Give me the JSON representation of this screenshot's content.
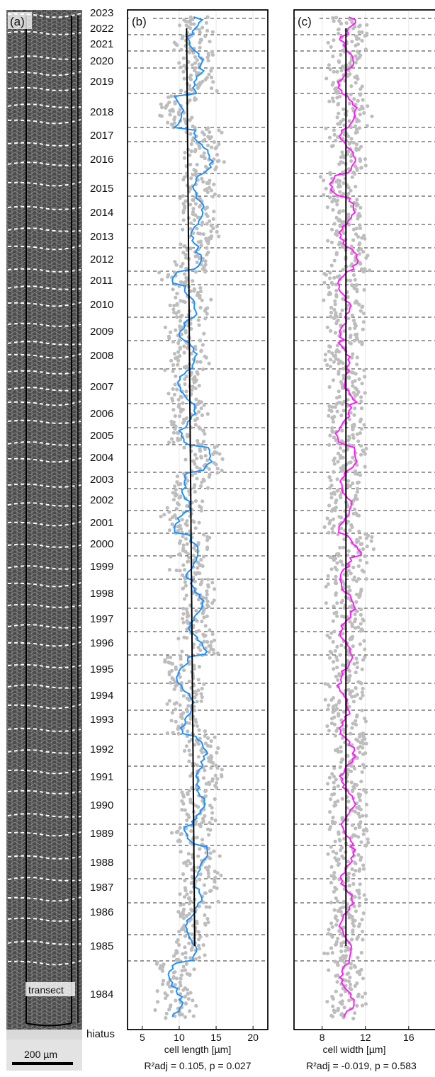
{
  "panels": {
    "a": {
      "label": "(a)",
      "transect_label": "transect",
      "scale_label": "200 µm"
    },
    "b": {
      "label": "(b)"
    },
    "c": {
      "label": "(c)"
    }
  },
  "years": [
    "2023",
    "2022",
    "2021",
    "2020",
    "2019",
    "2018",
    "2017",
    "2016",
    "2015",
    "2014",
    "2013",
    "2012",
    "2011",
    "2010",
    "2009",
    "2008",
    "2007",
    "2006",
    "2005",
    "2004",
    "2003",
    "2002",
    "2001",
    "2000",
    "1999",
    "1998",
    "1997",
    "1996",
    "1995",
    "1994",
    "1993",
    "1992",
    "1991",
    "1990",
    "1989",
    "1988",
    "1987",
    "1986",
    "1985",
    "1984"
  ],
  "hiatus_label": "hiatus",
  "colors": {
    "length_series": "#1e90ff",
    "width_series": "#ff1aff",
    "points": "#bdbdbd",
    "trend": "#000000",
    "micrograph": "#4a4a4a"
  },
  "chart_data": [
    {
      "type": "scatter",
      "title": "",
      "xlabel": "cell length [µm]",
      "ylabel": "",
      "xlim": [
        3,
        22
      ],
      "xticks": [
        5,
        10,
        15,
        20
      ],
      "grid": "vertical",
      "stat_label": "R²adj = 0.105, p = 0.027",
      "stats": {
        "r2_adj": 0.105,
        "p": 0.027
      },
      "trend_line": {
        "from_year": "1985",
        "x_start": 12.1,
        "to_year": "2023",
        "x_end": 11.0
      },
      "series": [
        {
          "color": "#1e90ff",
          "mean_by_year": [
            11.5,
            12.4,
            12.0,
            12.2,
            12.8,
            9.8,
            13.0,
            13.5,
            12.8,
            12.5,
            12.5,
            12.0,
            9.8,
            11.5,
            11.0,
            11.5,
            10.8,
            11.5,
            11.0,
            13.5,
            11.5,
            10.5,
            10.0,
            12.0,
            11.5,
            12.5,
            12.2,
            12.8,
            10.5,
            11.0,
            11.2,
            12.8,
            13.2,
            12.5,
            11.5,
            13.0,
            12.5,
            11.8,
            11.5,
            9.5
          ]
        }
      ]
    },
    {
      "type": "scatter",
      "title": "",
      "xlabel": "cell width [µm]",
      "ylabel": "",
      "xlim": [
        5.4,
        18.5
      ],
      "xticks": [
        8,
        12,
        16
      ],
      "grid": "vertical",
      "stat_label": "R²adj = -0.019, p = 0.583",
      "stats": {
        "r2_adj": -0.019,
        "p": 0.583
      },
      "trend_line": {
        "from_year": "1985",
        "x_start": 10.2,
        "to_year": "2023",
        "x_end": 10.2
      },
      "series": [
        {
          "color": "#ff1aff",
          "mean_by_year": [
            10.0,
            10.8,
            10.3,
            10.2,
            10.1,
            10.6,
            10.3,
            10.5,
            9.4,
            10.4,
            10.3,
            10.6,
            10.1,
            10.0,
            10.3,
            9.9,
            10.6,
            10.1,
            9.9,
            10.6,
            10.3,
            10.2,
            10.1,
            11.0,
            10.2,
            10.3,
            10.4,
            10.1,
            10.2,
            9.8,
            10.2,
            10.4,
            10.3,
            10.4,
            10.6,
            10.4,
            10.3,
            10.2,
            10.1,
            10.3
          ]
        }
      ]
    }
  ]
}
